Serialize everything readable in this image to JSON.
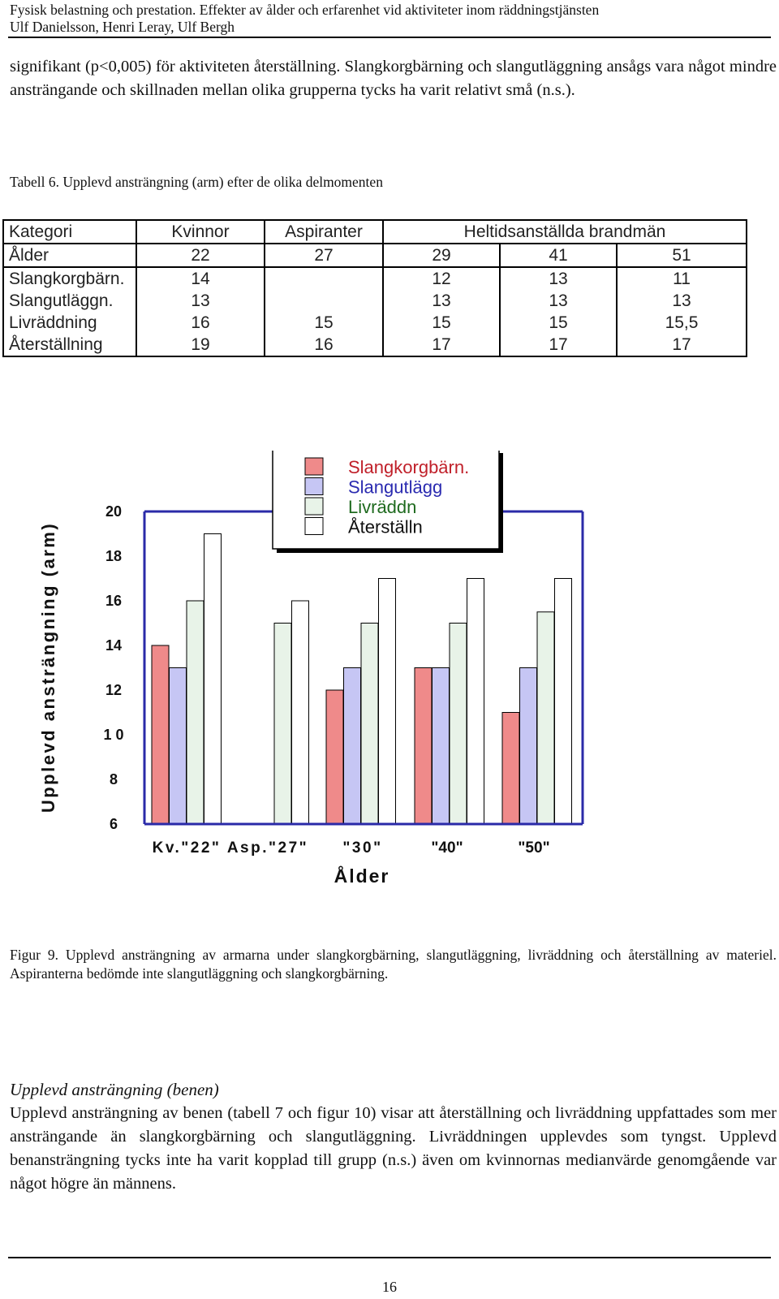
{
  "header": {
    "title": "Fysisk belastning och prestation. Effekter av ålder och erfarenhet vid aktiviteter inom räddningstjänsten",
    "authors": "Ulf Danielsson, Henri Leray, Ulf Bergh"
  },
  "intro_paragraph": "signifikant (p<0,005) för aktiviteten återställning. Slangkorgbärning och slangutläggning ansågs vara något mindre ansträngande och skillnaden mellan olika grupperna tycks ha varit relativt små (n.s.).",
  "table": {
    "caption": "Tabell 6. Upplevd ansträngning (arm) efter de olika delmomenten",
    "header_row": [
      "Kategori",
      "Kvinnor",
      "Aspiranter",
      "Heltidsanställda brandmän"
    ],
    "age_row": [
      "Ålder",
      "22",
      "27",
      "29",
      "41",
      "51"
    ],
    "rows": [
      [
        "Slangkorgbärn.",
        "14",
        "",
        "12",
        "13",
        "11"
      ],
      [
        "Slangutläggn.",
        "13",
        "",
        "13",
        "13",
        "13"
      ],
      [
        "Livräddning",
        "16",
        "15",
        "15",
        "15",
        "15,5"
      ],
      [
        "Återställning",
        "19",
        "16",
        "17",
        "17",
        "17"
      ]
    ]
  },
  "chart_data": {
    "type": "bar",
    "ylabel": "Upplevd ansträngning (arm)",
    "xlabel": "Ålder",
    "ylim": [
      6,
      20
    ],
    "ytick_labels": [
      "20",
      "18",
      "16",
      "14",
      "12",
      "1 0",
      "8",
      "6"
    ],
    "categories": [
      "Kv.\"22\"",
      "Asp.\"27\"",
      "\"30\"",
      "\"40\"",
      "\"50\""
    ],
    "series": [
      {
        "name": "Slangkorgbärn.",
        "color": "#ef8a8a",
        "values": [
          14,
          null,
          12,
          13,
          11
        ]
      },
      {
        "name": "Slangutlägg",
        "color": "#c6c6f4",
        "values": [
          13,
          null,
          13,
          13,
          13
        ]
      },
      {
        "name": "Livräddn",
        "color": "#e8f3e8",
        "values": [
          16,
          15,
          15,
          15,
          15.5
        ]
      },
      {
        "name": "Återställn",
        "color": "#ffffff",
        "values": [
          19,
          16,
          17,
          17,
          17
        ]
      }
    ],
    "legend_text_colors": [
      "#c0202a",
      "#2a2ab0",
      "#1e6a1e",
      "#111111"
    ],
    "axis_color": "#2a2aa8",
    "legend_position": "top-right"
  },
  "figure_caption": "Figur 9. Upplevd ansträngning av armarna under slangkorgbärning, slangutläggning, livräddning och återställning av materiel. Aspiranterna bedömde inte slangutläggning och slangkorgbärning.",
  "section": {
    "heading": "Upplevd ansträngning (benen)",
    "body": "Upplevd ansträngning av benen (tabell 7 och figur 10) visar att återställning och livräddning uppfattades som mer ansträngande än slangkorgbärning och slangutläggning. Livräddningen upplevdes som tyngst. Upplevd benansträngning tycks inte ha varit kopplad till grupp (n.s.) även om kvinnornas medianvärde genomgående var något högre än männens."
  },
  "page_number": "16"
}
